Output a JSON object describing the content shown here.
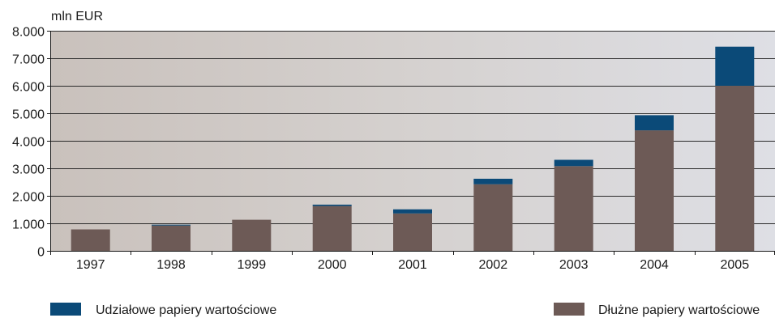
{
  "chart_data": {
    "type": "bar",
    "stacked": true,
    "ylabel": "mln EUR",
    "categories": [
      "1997",
      "1998",
      "1999",
      "2000",
      "2001",
      "2002",
      "2003",
      "2004",
      "2005"
    ],
    "series": [
      {
        "name": "Dłużne papiery wartościowe",
        "color": "#6d5a56",
        "values": [
          780,
          920,
          1130,
          1630,
          1360,
          2420,
          3080,
          4380,
          6000
        ]
      },
      {
        "name": "Udziałowe papiery wartościowe",
        "color": "#0b4a78",
        "values": [
          0,
          30,
          0,
          50,
          150,
          200,
          230,
          550,
          1420
        ]
      }
    ],
    "ylim": [
      0,
      8000
    ],
    "yticks": [
      0,
      1000,
      2000,
      3000,
      4000,
      5000,
      6000,
      7000,
      8000
    ],
    "ytick_labels": [
      "0",
      "1.000",
      "2.000",
      "3.000",
      "4.000",
      "5.000",
      "6.000",
      "7.000",
      "8.000"
    ],
    "grid": true,
    "legend": "bottom"
  }
}
